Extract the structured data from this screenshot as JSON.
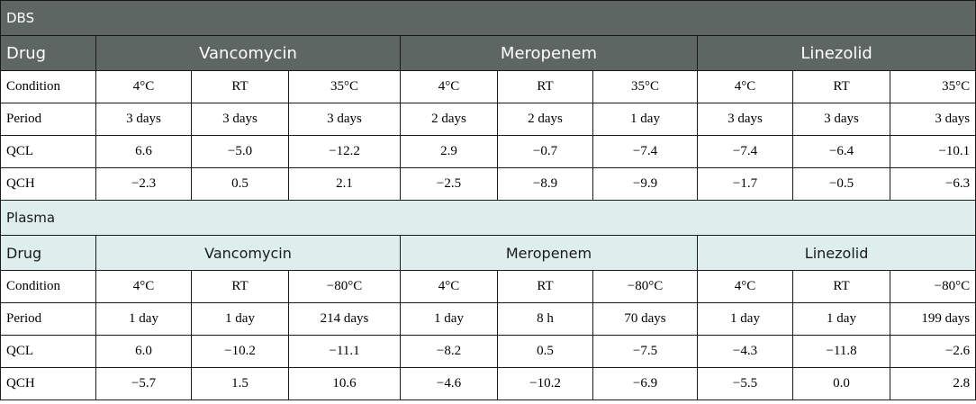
{
  "sections": [
    {
      "title": "DBS",
      "drug_label": "Drug",
      "drugs": [
        "Vancomycin",
        "Meropenem",
        "Linezolid"
      ],
      "rows": [
        {
          "label": "Condition",
          "values": [
            "4°C",
            "RT",
            "35°C",
            "4°C",
            "RT",
            "35°C",
            "4°C",
            "RT",
            "35°C"
          ]
        },
        {
          "label": "Period",
          "values": [
            "3 days",
            "3 days",
            "3 days",
            "2 days",
            "2 days",
            "1 day",
            "3 days",
            "3 days",
            "3 days"
          ]
        },
        {
          "label": "QCL",
          "values": [
            "6.6",
            "−5.0",
            "−12.2",
            "2.9",
            "−0.7",
            "−7.4",
            "−7.4",
            "−6.4",
            "−10.1"
          ]
        },
        {
          "label": "QCH",
          "values": [
            "−2.3",
            "0.5",
            "2.1",
            "−2.5",
            "−8.9",
            "−9.9",
            "−1.7",
            "−0.5",
            "−6.3"
          ]
        }
      ]
    },
    {
      "title": "Plasma",
      "drug_label": "Drug",
      "drugs": [
        "Vancomycin",
        "Meropenem",
        "Linezolid"
      ],
      "rows": [
        {
          "label": "Condition",
          "values": [
            "4°C",
            "RT",
            "−80°C",
            "4°C",
            "RT",
            "−80°C",
            "4°C",
            "RT",
            "−80°C"
          ]
        },
        {
          "label": "Period",
          "values": [
            "1 day",
            "1 day",
            "214 days",
            "1 day",
            "8 h",
            "70 days",
            "1 day",
            "1 day",
            "199 days"
          ]
        },
        {
          "label": "QCL",
          "values": [
            "6.0",
            "−10.2",
            "−11.1",
            "−8.2",
            "0.5",
            "−7.5",
            "−4.3",
            "−11.8",
            "−2.6"
          ]
        },
        {
          "label": "QCH",
          "values": [
            "−5.7",
            "1.5",
            "10.6",
            "−4.6",
            "−10.2",
            "−6.9",
            "−5.5",
            "0.0",
            "2.8"
          ]
        }
      ]
    }
  ],
  "colors": {
    "dbs_header_bg": "#5e6664",
    "dbs_header_text": "#ffffff",
    "plasma_header_bg": "#ddeeed",
    "border": "#1a1a1a"
  }
}
